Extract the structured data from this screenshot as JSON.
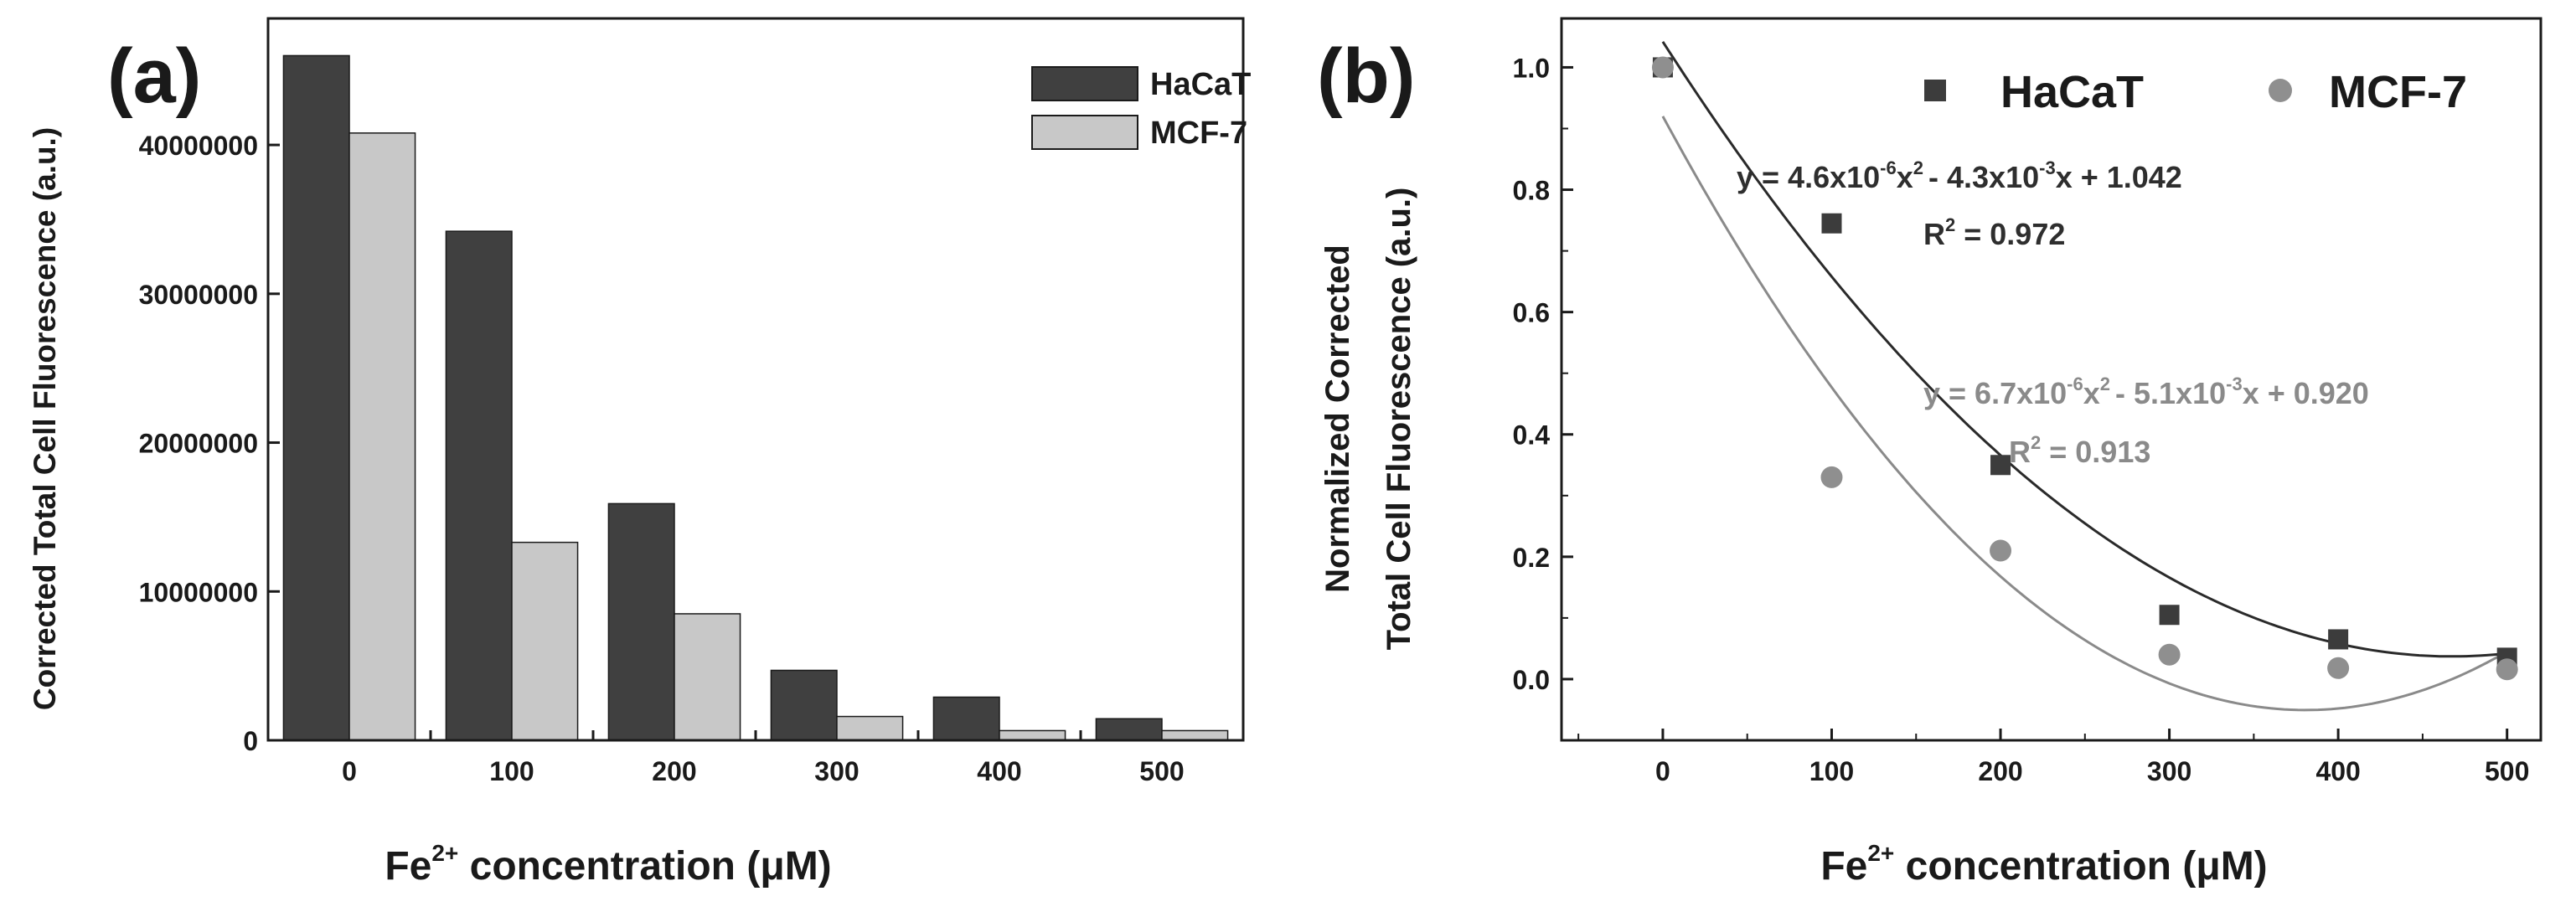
{
  "colors": {
    "hacat": "#404040",
    "mcf7": "#c8c8c8",
    "hacat_marker": "#3c3c3c",
    "mcf7_marker": "#8f8f8f",
    "hacat_fit": "#2a2a2a",
    "mcf7_fit": "#8a8a8a",
    "axis": "#1a1a1a"
  },
  "chart_data": [
    {
      "panel_label": "(a)",
      "type": "bar",
      "ylabel": "Corrected Total Cell Fluorescence (a.u.)",
      "xlabel": {
        "base": "Fe",
        "sup": "2+",
        "rest": " concentration (μM)"
      },
      "categories": [
        "0",
        "100",
        "200",
        "300",
        "400",
        "500"
      ],
      "series": [
        {
          "name": "HaCaT",
          "values": [
            46000000,
            34200000,
            15900000,
            4700000,
            2900000,
            1450000
          ]
        },
        {
          "name": "MCF-7",
          "values": [
            40800000,
            13300000,
            8500000,
            1600000,
            650000,
            650000
          ]
        }
      ],
      "ylim": [
        0,
        48500000
      ],
      "yticks": [
        0,
        10000000,
        20000000,
        30000000,
        40000000
      ],
      "ytick_labels": [
        "0",
        "10000000",
        "20000000",
        "30000000",
        "40000000"
      ],
      "legend": {
        "position": "top-right",
        "entries": [
          "HaCaT",
          "MCF-7"
        ]
      }
    },
    {
      "panel_label": "(b)",
      "type": "scatter",
      "ylabel_lines": [
        "Normalized Corrected",
        "Total Cell Fluorescence (a.u.)"
      ],
      "xlabel": {
        "base": "Fe",
        "sup": "2+",
        "rest": " concentration (μM)"
      },
      "xlim": [
        -60,
        520
      ],
      "ylim": [
        -0.1,
        1.08
      ],
      "xticks": [
        0,
        100,
        200,
        300,
        400,
        500
      ],
      "xtick_labels": [
        "0",
        "100",
        "200",
        "300",
        "400",
        "500"
      ],
      "yticks": [
        0,
        0.2,
        0.4,
        0.6,
        0.8,
        1.0
      ],
      "ytick_labels": [
        "0.0",
        "0.2",
        "0.4",
        "0.6",
        "0.8",
        "1.0"
      ],
      "series": [
        {
          "name": "HaCaT",
          "marker": "square",
          "x": [
            0,
            100,
            200,
            300,
            400,
            500
          ],
          "y": [
            1.0,
            0.745,
            0.35,
            0.105,
            0.065,
            0.035
          ],
          "fit": {
            "a": 4.6e-06,
            "b": -0.0043,
            "c": 1.042
          },
          "equation": {
            "p1": "y = 4.6x10",
            "s1": "-6",
            "p2": "x",
            "s2": "2",
            "p3": "- 4.3x10",
            "s3": "-3",
            "p4": "x + 1.042"
          },
          "r2": {
            "p1": "R",
            "s1": "2",
            "p2": " = 0.972"
          }
        },
        {
          "name": "MCF-7",
          "marker": "circle",
          "x": [
            0,
            100,
            200,
            300,
            400,
            500
          ],
          "y": [
            1.0,
            0.33,
            0.21,
            0.04,
            0.018,
            0.016
          ],
          "fit": {
            "a": 6.7e-06,
            "b": -0.0051,
            "c": 0.92
          },
          "equation": {
            "p1": "y = 6.7x10",
            "s1": "-6",
            "p2": "x",
            "s2": "2",
            "p3": "- 5.1x10",
            "s3": "-3",
            "p4": "x + 0.920"
          },
          "r2": {
            "p1": "R",
            "s1": "2",
            "p2": " = 0.913"
          }
        }
      ],
      "legend": {
        "position": "top",
        "entries": [
          "HaCaT",
          "MCF-7"
        ]
      }
    }
  ]
}
